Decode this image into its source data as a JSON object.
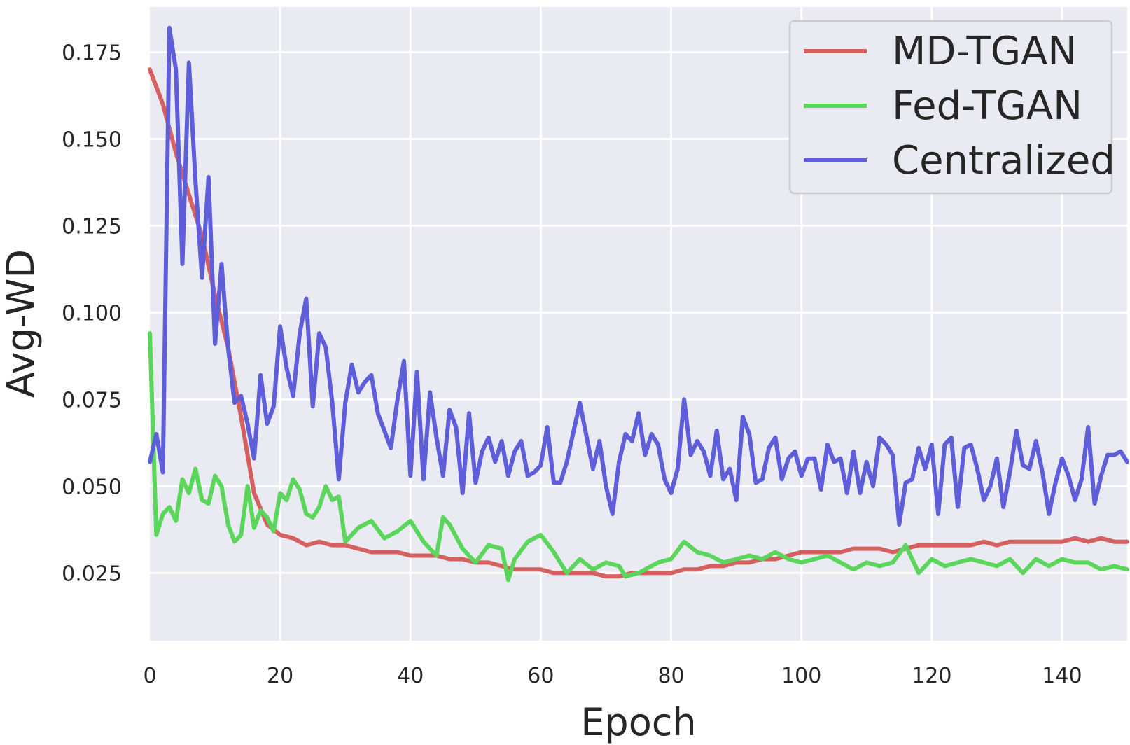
{
  "chart_data": {
    "type": "line",
    "xlabel": "Epoch",
    "ylabel": "Avg-WD",
    "xlim": [
      0,
      150
    ],
    "ylim": [
      0.0055,
      0.188
    ],
    "xticks": [
      0,
      20,
      40,
      60,
      80,
      100,
      120,
      140
    ],
    "xtick_labels": [
      "0",
      "20",
      "40",
      "60",
      "80",
      "100",
      "120",
      "140"
    ],
    "yticks": [
      0.025,
      0.05,
      0.075,
      0.1,
      0.125,
      0.15,
      0.175
    ],
    "ytick_labels": [
      "0.025",
      "0.050",
      "0.075",
      "0.100",
      "0.125",
      "0.150",
      "0.175"
    ],
    "grid": true,
    "background": "#EAEAF2",
    "legend_position": "top-right",
    "series": [
      {
        "name": "MD-TGAN",
        "color": "#D65F5F",
        "x": [
          0,
          2,
          4,
          6,
          8,
          10,
          12,
          14,
          16,
          18,
          20,
          22,
          24,
          26,
          28,
          30,
          32,
          34,
          36,
          38,
          40,
          42,
          44,
          46,
          48,
          50,
          52,
          54,
          56,
          58,
          60,
          62,
          64,
          66,
          68,
          70,
          72,
          74,
          76,
          78,
          80,
          82,
          84,
          86,
          88,
          90,
          92,
          94,
          96,
          98,
          100,
          102,
          104,
          106,
          108,
          110,
          112,
          114,
          116,
          118,
          120,
          122,
          124,
          126,
          128,
          130,
          132,
          134,
          136,
          138,
          140,
          142,
          144,
          146,
          148,
          150
        ],
        "values": [
          0.17,
          0.16,
          0.146,
          0.134,
          0.122,
          0.105,
          0.09,
          0.07,
          0.048,
          0.039,
          0.036,
          0.035,
          0.033,
          0.034,
          0.033,
          0.033,
          0.032,
          0.031,
          0.031,
          0.031,
          0.03,
          0.03,
          0.03,
          0.029,
          0.029,
          0.028,
          0.028,
          0.027,
          0.026,
          0.026,
          0.026,
          0.025,
          0.025,
          0.025,
          0.025,
          0.024,
          0.024,
          0.025,
          0.025,
          0.025,
          0.025,
          0.026,
          0.026,
          0.027,
          0.027,
          0.028,
          0.028,
          0.029,
          0.029,
          0.03,
          0.031,
          0.031,
          0.031,
          0.031,
          0.032,
          0.032,
          0.032,
          0.031,
          0.032,
          0.033,
          0.033,
          0.033,
          0.033,
          0.033,
          0.034,
          0.033,
          0.034,
          0.034,
          0.034,
          0.034,
          0.034,
          0.035,
          0.034,
          0.035,
          0.034,
          0.034
        ]
      },
      {
        "name": "Fed-TGAN",
        "color": "#5AD65A",
        "x": [
          0,
          1,
          2,
          3,
          4,
          5,
          6,
          7,
          8,
          9,
          10,
          11,
          12,
          13,
          14,
          15,
          16,
          17,
          18,
          19,
          20,
          21,
          22,
          23,
          24,
          25,
          26,
          27,
          28,
          29,
          30,
          32,
          34,
          36,
          38,
          40,
          42,
          44,
          45,
          46,
          48,
          50,
          52,
          54,
          55,
          56,
          58,
          60,
          62,
          64,
          66,
          68,
          70,
          72,
          73,
          75,
          78,
          80,
          82,
          84,
          86,
          88,
          90,
          92,
          94,
          96,
          98,
          100,
          102,
          104,
          106,
          108,
          110,
          112,
          114,
          116,
          118,
          120,
          122,
          124,
          126,
          128,
          130,
          132,
          134,
          136,
          138,
          140,
          142,
          144,
          146,
          148,
          150
        ],
        "values": [
          0.094,
          0.036,
          0.042,
          0.044,
          0.04,
          0.052,
          0.048,
          0.055,
          0.046,
          0.045,
          0.053,
          0.05,
          0.039,
          0.034,
          0.036,
          0.05,
          0.038,
          0.043,
          0.041,
          0.037,
          0.048,
          0.046,
          0.052,
          0.049,
          0.042,
          0.041,
          0.044,
          0.05,
          0.046,
          0.047,
          0.034,
          0.038,
          0.04,
          0.035,
          0.037,
          0.04,
          0.034,
          0.03,
          0.041,
          0.039,
          0.032,
          0.028,
          0.033,
          0.032,
          0.023,
          0.029,
          0.034,
          0.036,
          0.031,
          0.025,
          0.029,
          0.026,
          0.028,
          0.027,
          0.024,
          0.025,
          0.028,
          0.029,
          0.034,
          0.031,
          0.03,
          0.028,
          0.029,
          0.03,
          0.029,
          0.031,
          0.029,
          0.028,
          0.029,
          0.03,
          0.028,
          0.026,
          0.028,
          0.027,
          0.028,
          0.033,
          0.025,
          0.029,
          0.027,
          0.028,
          0.029,
          0.028,
          0.027,
          0.029,
          0.025,
          0.029,
          0.027,
          0.029,
          0.028,
          0.028,
          0.026,
          0.027,
          0.026
        ]
      },
      {
        "name": "Centralized",
        "color": "#5E5EDB",
        "x": [
          0,
          1,
          2,
          3,
          4,
          5,
          6,
          7,
          8,
          9,
          10,
          11,
          12,
          13,
          14,
          15,
          16,
          17,
          18,
          19,
          20,
          21,
          22,
          23,
          24,
          25,
          26,
          27,
          28,
          29,
          30,
          31,
          32,
          33,
          34,
          35,
          37,
          38,
          39,
          40,
          41,
          42,
          43,
          44,
          45,
          46,
          47,
          48,
          49,
          50,
          51,
          52,
          53,
          54,
          55,
          56,
          57,
          58,
          59,
          60,
          61,
          62,
          63,
          64,
          66,
          68,
          69,
          70,
          71,
          72,
          73,
          74,
          75,
          76,
          77,
          78,
          79,
          80,
          81,
          82,
          83,
          84,
          85,
          86,
          87,
          88,
          89,
          90,
          91,
          92,
          93,
          94,
          95,
          96,
          97,
          98,
          99,
          100,
          101,
          102,
          103,
          104,
          105,
          106,
          107,
          108,
          109,
          110,
          111,
          112,
          113,
          114,
          115,
          116,
          117,
          118,
          119,
          120,
          121,
          122,
          123,
          124,
          125,
          126,
          127,
          128,
          129,
          130,
          131,
          132,
          133,
          134,
          135,
          136,
          137,
          138,
          139,
          140,
          141,
          142,
          143,
          144,
          145,
          146,
          147,
          148,
          149,
          150
        ],
        "values": [
          0.057,
          0.065,
          0.054,
          0.182,
          0.17,
          0.114,
          0.172,
          0.138,
          0.11,
          0.139,
          0.091,
          0.114,
          0.09,
          0.074,
          0.076,
          0.068,
          0.058,
          0.082,
          0.068,
          0.073,
          0.096,
          0.084,
          0.076,
          0.094,
          0.104,
          0.073,
          0.094,
          0.09,
          0.074,
          0.052,
          0.074,
          0.085,
          0.077,
          0.08,
          0.082,
          0.071,
          0.061,
          0.075,
          0.086,
          0.053,
          0.083,
          0.052,
          0.077,
          0.064,
          0.053,
          0.072,
          0.067,
          0.048,
          0.071,
          0.051,
          0.06,
          0.064,
          0.057,
          0.063,
          0.053,
          0.06,
          0.063,
          0.053,
          0.054,
          0.056,
          0.067,
          0.051,
          0.051,
          0.057,
          0.074,
          0.055,
          0.063,
          0.05,
          0.042,
          0.057,
          0.065,
          0.063,
          0.071,
          0.059,
          0.065,
          0.062,
          0.052,
          0.048,
          0.055,
          0.075,
          0.059,
          0.063,
          0.06,
          0.053,
          0.066,
          0.052,
          0.055,
          0.046,
          0.07,
          0.065,
          0.051,
          0.052,
          0.061,
          0.064,
          0.052,
          0.058,
          0.06,
          0.053,
          0.058,
          0.058,
          0.049,
          0.062,
          0.057,
          0.058,
          0.048,
          0.06,
          0.048,
          0.057,
          0.05,
          0.064,
          0.062,
          0.059,
          0.039,
          0.051,
          0.052,
          0.061,
          0.055,
          0.062,
          0.042,
          0.062,
          0.064,
          0.044,
          0.061,
          0.062,
          0.055,
          0.046,
          0.05,
          0.058,
          0.044,
          0.054,
          0.066,
          0.056,
          0.055,
          0.063,
          0.054,
          0.042,
          0.051,
          0.058,
          0.053,
          0.046,
          0.052,
          0.067,
          0.045,
          0.053,
          0.059,
          0.059,
          0.06,
          0.057
        ]
      }
    ]
  }
}
